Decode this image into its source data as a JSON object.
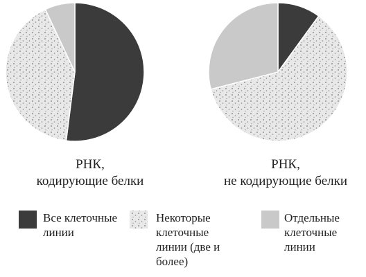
{
  "chart_data": [
    {
      "type": "pie",
      "title": [
        "РНК,",
        "кодирующие белки"
      ],
      "categories": [
        "Все клеточные линии",
        "Некоторые клеточные линии (две и более)",
        "Отдельные клеточные линии"
      ],
      "values": [
        52,
        41,
        7
      ],
      "colors": [
        "#3b3b3b",
        "#e8e8e8",
        "#c9c9c9"
      ],
      "patterns": [
        null,
        "dots",
        null
      ]
    },
    {
      "type": "pie",
      "title": [
        "РНК,",
        "не кодирующие белки"
      ],
      "categories": [
        "Все клеточные линии",
        "Некоторые клеточные линии (две и более)",
        "Отдельные клеточные линии"
      ],
      "values": [
        10,
        61,
        29
      ],
      "colors": [
        "#3b3b3b",
        "#e8e8e8",
        "#c9c9c9"
      ],
      "patterns": [
        null,
        "dots",
        null
      ]
    }
  ]
}
